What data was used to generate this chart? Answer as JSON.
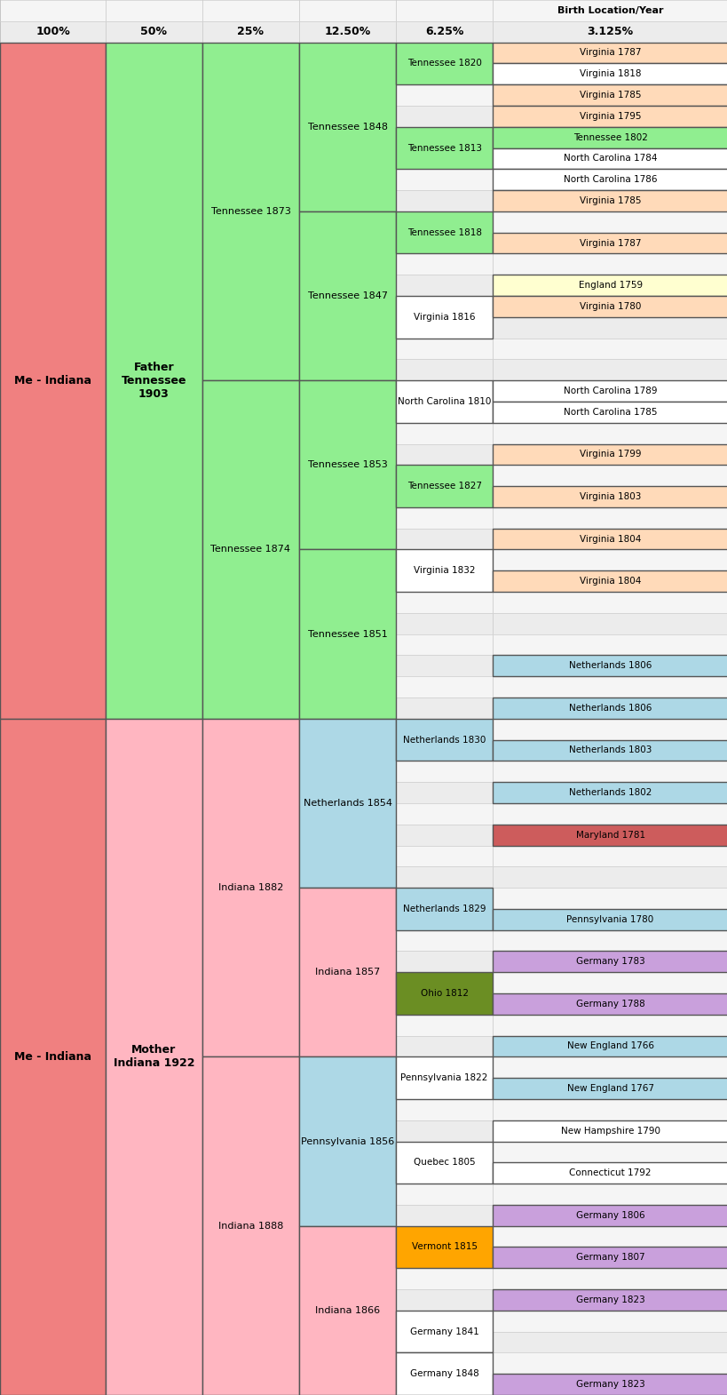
{
  "n_rows": 66,
  "n_cols": 6,
  "col_bounds": [
    0.0,
    0.145,
    0.278,
    0.411,
    0.544,
    0.677,
    1.0
  ],
  "header": {
    "row0_label": "Birth Location/Year",
    "row1_labels": [
      "100%",
      "50%",
      "25%",
      "12.50%",
      "6.25%",
      "3.125%"
    ]
  },
  "span_boxes": [
    {
      "label": "Me - Indiana",
      "col": 0,
      "r0": 2,
      "r1": 34,
      "color": "#f08080"
    },
    {
      "label": "Me - Indiana",
      "col": 0,
      "r0": 34,
      "r1": 66,
      "color": "#f08080"
    },
    {
      "label": "Father\nTennessee\n1903",
      "col": 1,
      "r0": 2,
      "r1": 34,
      "color": "#90ee90"
    },
    {
      "label": "Mother\nIndiana 1922",
      "col": 1,
      "r0": 34,
      "r1": 66,
      "color": "#ffb6c1"
    },
    {
      "label": "Tennessee 1873",
      "col": 2,
      "r0": 2,
      "r1": 18,
      "color": "#90ee90"
    },
    {
      "label": "Tennessee 1874",
      "col": 2,
      "r0": 18,
      "r1": 34,
      "color": "#90ee90"
    },
    {
      "label": "Indiana 1882",
      "col": 2,
      "r0": 34,
      "r1": 50,
      "color": "#ffb6c1"
    },
    {
      "label": "Indiana 1888",
      "col": 2,
      "r0": 50,
      "r1": 66,
      "color": "#ffb6c1"
    },
    {
      "label": "Tennessee 1848",
      "col": 3,
      "r0": 2,
      "r1": 10,
      "color": "#90ee90"
    },
    {
      "label": "Tennessee 1847",
      "col": 3,
      "r0": 10,
      "r1": 18,
      "color": "#90ee90"
    },
    {
      "label": "Tennessee 1853",
      "col": 3,
      "r0": 18,
      "r1": 26,
      "color": "#90ee90"
    },
    {
      "label": "Tennessee 1851",
      "col": 3,
      "r0": 26,
      "r1": 34,
      "color": "#90ee90"
    },
    {
      "label": "Netherlands 1854",
      "col": 3,
      "r0": 34,
      "r1": 42,
      "color": "#add8e6"
    },
    {
      "label": "Indiana 1857",
      "col": 3,
      "r0": 42,
      "r1": 50,
      "color": "#ffb6c1"
    },
    {
      "label": "Pennsylvania 1856",
      "col": 3,
      "r0": 50,
      "r1": 58,
      "color": "#add8e6"
    },
    {
      "label": "Indiana 1866",
      "col": 3,
      "r0": 58,
      "r1": 66,
      "color": "#ffb6c1"
    }
  ],
  "pair_boxes": [
    {
      "label": "Tennessee 1820",
      "col": 4,
      "r0": 2,
      "color": "#90ee90"
    },
    {
      "label": "Tennessee 1813",
      "col": 4,
      "r0": 6,
      "color": "#90ee90"
    },
    {
      "label": "Tennessee 1818",
      "col": 4,
      "r0": 10,
      "color": "#90ee90"
    },
    {
      "label": "Virginia 1816",
      "col": 4,
      "r0": 14,
      "color": "#ffffff"
    },
    {
      "label": "North Carolina 1810",
      "col": 4,
      "r0": 18,
      "color": "#ffffff"
    },
    {
      "label": "Tennessee 1827",
      "col": 4,
      "r0": 22,
      "color": "#90ee90"
    },
    {
      "label": "Virginia 1832",
      "col": 4,
      "r0": 26,
      "color": "#ffffff"
    },
    {
      "label": "Netherlands 1830",
      "col": 4,
      "r0": 34,
      "color": "#add8e6"
    },
    {
      "label": "Netherlands 1829",
      "col": 4,
      "r0": 42,
      "color": "#add8e6"
    },
    {
      "label": "Ohio 1812",
      "col": 4,
      "r0": 46,
      "color": "#6b8e23"
    },
    {
      "label": "Pennsylvania 1822",
      "col": 4,
      "r0": 50,
      "color": "#ffffff"
    },
    {
      "label": "Quebec 1805",
      "col": 4,
      "r0": 54,
      "color": "#ffffff"
    },
    {
      "label": "Vermont 1815",
      "col": 4,
      "r0": 58,
      "color": "#ffa500"
    },
    {
      "label": "Germany 1841",
      "col": 4,
      "r0": 62,
      "color": "#ffffff"
    },
    {
      "label": "Germany 1848",
      "col": 4,
      "r0": 64,
      "color": "#ffffff"
    }
  ],
  "single_boxes": [
    {
      "label": "Virginia 1787",
      "col": 5,
      "r0": 2,
      "color": "#ffdab9"
    },
    {
      "label": "Virginia 1818",
      "col": 5,
      "r0": 3,
      "color": "#ffffff"
    },
    {
      "label": "Virginia 1785",
      "col": 5,
      "r0": 4,
      "color": "#ffdab9"
    },
    {
      "label": "Virginia 1795",
      "col": 5,
      "r0": 5,
      "color": "#ffdab9"
    },
    {
      "label": "Tennessee 1802",
      "col": 5,
      "r0": 6,
      "color": "#90ee90"
    },
    {
      "label": "North Carolina 1784",
      "col": 5,
      "r0": 7,
      "color": "#ffffff"
    },
    {
      "label": "North Carolina 1786",
      "col": 5,
      "r0": 8,
      "color": "#ffffff"
    },
    {
      "label": "Virginia 1785",
      "col": 5,
      "r0": 9,
      "color": "#ffdab9"
    },
    {
      "label": "Virginia 1787",
      "col": 5,
      "r0": 11,
      "color": "#ffdab9"
    },
    {
      "label": "England 1759",
      "col": 5,
      "r0": 13,
      "color": "#ffffd0"
    },
    {
      "label": "Virginia 1780",
      "col": 5,
      "r0": 14,
      "color": "#ffdab9"
    },
    {
      "label": "North Carolina 1789",
      "col": 5,
      "r0": 18,
      "color": "#ffffff"
    },
    {
      "label": "North Carolina 1785",
      "col": 5,
      "r0": 19,
      "color": "#ffffff"
    },
    {
      "label": "Virginia 1799",
      "col": 5,
      "r0": 21,
      "color": "#ffdab9"
    },
    {
      "label": "Virginia 1803",
      "col": 5,
      "r0": 23,
      "color": "#ffdab9"
    },
    {
      "label": "Virginia 1804",
      "col": 5,
      "r0": 25,
      "color": "#ffdab9"
    },
    {
      "label": "Virginia 1804",
      "col": 5,
      "r0": 27,
      "color": "#ffdab9"
    },
    {
      "label": "Netherlands 1806",
      "col": 5,
      "r0": 31,
      "color": "#add8e6"
    },
    {
      "label": "Netherlands 1806",
      "col": 5,
      "r0": 33,
      "color": "#add8e6"
    },
    {
      "label": "Netherlands 1803",
      "col": 5,
      "r0": 35,
      "color": "#add8e6"
    },
    {
      "label": "Netherlands 1802",
      "col": 5,
      "r0": 37,
      "color": "#add8e6"
    },
    {
      "label": "Maryland 1781",
      "col": 5,
      "r0": 39,
      "color": "#cd5c5c"
    },
    {
      "label": "Pennsylvania 1780",
      "col": 5,
      "r0": 43,
      "color": "#add8e6"
    },
    {
      "label": "Germany 1783",
      "col": 5,
      "r0": 45,
      "color": "#c9a0dc"
    },
    {
      "label": "Germany 1788",
      "col": 5,
      "r0": 47,
      "color": "#c9a0dc"
    },
    {
      "label": "New England 1766",
      "col": 5,
      "r0": 49,
      "color": "#add8e6"
    },
    {
      "label": "New England 1767",
      "col": 5,
      "r0": 51,
      "color": "#add8e6"
    },
    {
      "label": "New Hampshire 1790",
      "col": 5,
      "r0": 53,
      "color": "#ffffff"
    },
    {
      "label": "Connecticut 1792",
      "col": 5,
      "r0": 55,
      "color": "#ffffff"
    },
    {
      "label": "Germany 1806",
      "col": 5,
      "r0": 57,
      "color": "#c9a0dc"
    },
    {
      "label": "Germany 1807",
      "col": 5,
      "r0": 59,
      "color": "#c9a0dc"
    },
    {
      "label": "Germany 1823",
      "col": 5,
      "r0": 61,
      "color": "#c9a0dc"
    },
    {
      "label": "Germany 1823",
      "col": 5,
      "r0": 65,
      "color": "#c9a0dc"
    }
  ]
}
